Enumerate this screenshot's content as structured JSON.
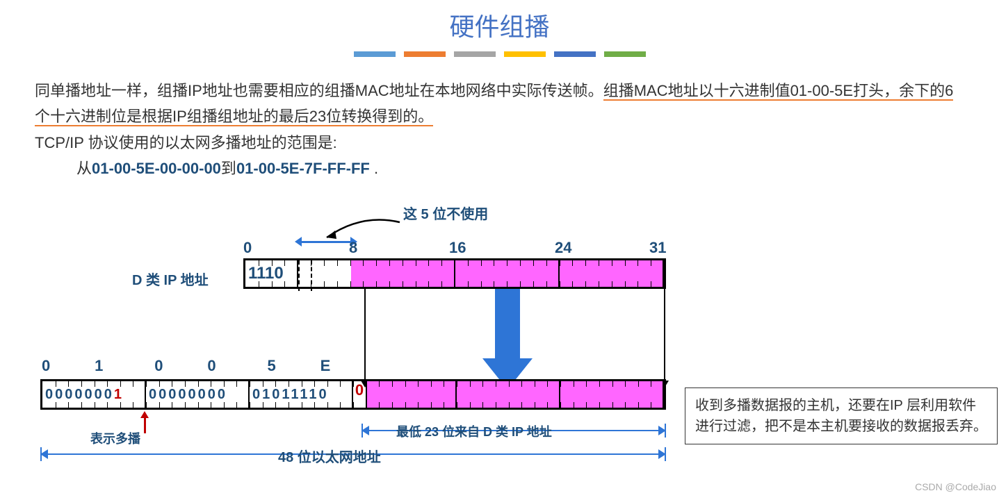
{
  "title": "硬件组播",
  "accent_bars": [
    "#5b9bd5",
    "#ed7d31",
    "#a5a5a5",
    "#ffc000",
    "#4472c4",
    "#70ad47"
  ],
  "paragraph": {
    "p1_plain": "同单播地址一样，组播IP地址也需要相应的组播MAC地址在本地网络中实际传送帧。",
    "p1_underlined": "组播MAC地址以十六进制值01-00-5E打头，余下的6个十六进制位是根据IP组播组地址的最后23位转换得到的。",
    "p2": "TCP/IP 协议使用的以太网多播地址的范围是:",
    "range_prefix": "从",
    "range_start": "01-00-5E-00-00-00",
    "range_mid": "到",
    "range_end": "01-00-5E-7F-FF-FF",
    "range_suffix": " ."
  },
  "diagram": {
    "note_5bit": "这 5 位不使用",
    "tick_labels": {
      "t0": "0",
      "t8": "8",
      "t16": "16",
      "t24": "24",
      "t31": "31"
    },
    "ip_row_label": "D 类 IP 地址",
    "ip_1110": "1110",
    "hex_labels": [
      "0",
      "1",
      "0",
      "0",
      "5",
      "E"
    ],
    "mac_byte1": "0000000",
    "mac_byte1_last": "1",
    "mac_byte2": "00000000",
    "mac_byte3": "01011110",
    "mac_bit25": "0",
    "multicast_label": "表示多播",
    "low23_label": "最低 23 位来自 D 类 IP 地址",
    "full48_label": "48 位以太网地址",
    "colors": {
      "heading": "#4472c4",
      "label": "#1f4e79",
      "pink": "#ff66ff",
      "arrow_blue": "#2e75d6",
      "red": "#c00000",
      "underline": "#ed7d31"
    }
  },
  "side_note": "收到多播数据报的主机，还要在IP 层利用软件进行过滤，把不是本主机要接收的数据报丢弃。",
  "watermark": "CSDN @CodeJiao"
}
